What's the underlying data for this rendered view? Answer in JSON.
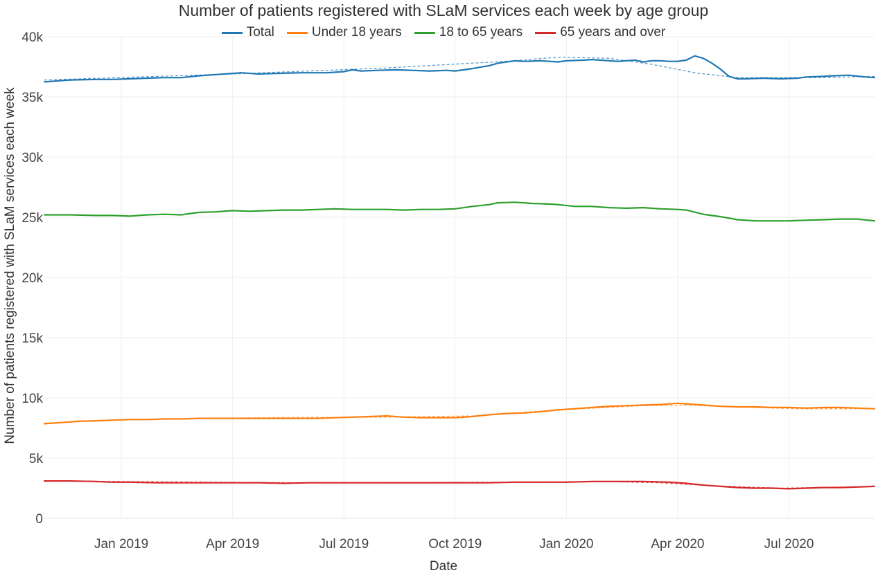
{
  "chart_data": {
    "type": "line",
    "title": "Number of patients registered with SLaM services each week by age group",
    "xlabel": "Date",
    "ylabel": "Number of patients registered with SLaM services each week",
    "x_tick_labels": [
      "Jan 2019",
      "Apr 2019",
      "Jul 2019",
      "Oct 2019",
      "Jan 2020",
      "Apr 2020",
      "Jul 2020"
    ],
    "y_tick_labels": [
      "0",
      "5k",
      "10k",
      "15k",
      "20k",
      "25k",
      "30k",
      "35k",
      "40k"
    ],
    "x_ticks": [
      9,
      22,
      35,
      48,
      61,
      74,
      87
    ],
    "y_ticks": [
      0,
      5000,
      10000,
      15000,
      20000,
      25000,
      30000,
      35000,
      40000
    ],
    "xlim": [
      0,
      97
    ],
    "ylim": [
      0,
      40000
    ],
    "grid": true,
    "legend_position": "top",
    "series": [
      {
        "name": "Total",
        "color": "#1f77b4",
        "trend": [
          [
            0,
            36400
          ],
          [
            22,
            36900
          ],
          [
            40,
            37400
          ],
          [
            55,
            38000
          ],
          [
            60,
            38300
          ],
          [
            66,
            38200
          ],
          [
            71,
            37700
          ],
          [
            76,
            37000
          ],
          [
            81,
            36600
          ],
          [
            90,
            36600
          ],
          [
            97,
            36700
          ]
        ],
        "values": [
          [
            0,
            36250
          ],
          [
            3,
            36400
          ],
          [
            6,
            36450
          ],
          [
            8,
            36450
          ],
          [
            10,
            36500
          ],
          [
            12,
            36550
          ],
          [
            14,
            36600
          ],
          [
            16,
            36600
          ],
          [
            18,
            36750
          ],
          [
            20,
            36850
          ],
          [
            22,
            36950
          ],
          [
            23,
            37000
          ],
          [
            25,
            36900
          ],
          [
            27,
            36950
          ],
          [
            30,
            37000
          ],
          [
            33,
            37000
          ],
          [
            35,
            37100
          ],
          [
            36,
            37250
          ],
          [
            37,
            37150
          ],
          [
            39,
            37200
          ],
          [
            41,
            37250
          ],
          [
            43,
            37200
          ],
          [
            45,
            37150
          ],
          [
            47,
            37200
          ],
          [
            48,
            37150
          ],
          [
            50,
            37350
          ],
          [
            52,
            37600
          ],
          [
            53,
            37800
          ],
          [
            55,
            38000
          ],
          [
            56,
            37950
          ],
          [
            58,
            38000
          ],
          [
            60,
            37900
          ],
          [
            61,
            38000
          ],
          [
            63,
            38050
          ],
          [
            64,
            38100
          ],
          [
            66,
            38000
          ],
          [
            67,
            37950
          ],
          [
            69,
            38050
          ],
          [
            70,
            37900
          ],
          [
            71,
            38000
          ],
          [
            72,
            38000
          ],
          [
            73,
            37950
          ],
          [
            74,
            37950
          ],
          [
            75,
            38050
          ],
          [
            76,
            38400
          ],
          [
            77,
            38200
          ],
          [
            78,
            37800
          ],
          [
            79,
            37300
          ],
          [
            80,
            36700
          ],
          [
            81,
            36500
          ],
          [
            82,
            36500
          ],
          [
            84,
            36550
          ],
          [
            86,
            36500
          ],
          [
            88,
            36550
          ],
          [
            89,
            36650
          ],
          [
            91,
            36700
          ],
          [
            92,
            36750
          ],
          [
            94,
            36800
          ],
          [
            96,
            36650
          ],
          [
            97,
            36600
          ]
        ]
      },
      {
        "name": "Under 18 years",
        "color": "#ff7f0e",
        "trend": [
          [
            0,
            7900
          ],
          [
            10,
            8200
          ],
          [
            25,
            8350
          ],
          [
            40,
            8400
          ],
          [
            50,
            8500
          ],
          [
            60,
            9000
          ],
          [
            70,
            9350
          ],
          [
            75,
            9400
          ],
          [
            80,
            9250
          ],
          [
            88,
            9100
          ],
          [
            97,
            9100
          ]
        ],
        "values": [
          [
            0,
            7850
          ],
          [
            2,
            7950
          ],
          [
            4,
            8050
          ],
          [
            6,
            8100
          ],
          [
            8,
            8150
          ],
          [
            10,
            8200
          ],
          [
            12,
            8200
          ],
          [
            14,
            8250
          ],
          [
            16,
            8250
          ],
          [
            18,
            8300
          ],
          [
            20,
            8300
          ],
          [
            22,
            8300
          ],
          [
            24,
            8300
          ],
          [
            26,
            8300
          ],
          [
            28,
            8300
          ],
          [
            30,
            8300
          ],
          [
            32,
            8300
          ],
          [
            34,
            8350
          ],
          [
            36,
            8400
          ],
          [
            38,
            8450
          ],
          [
            40,
            8500
          ],
          [
            42,
            8400
          ],
          [
            44,
            8350
          ],
          [
            46,
            8350
          ],
          [
            48,
            8350
          ],
          [
            50,
            8450
          ],
          [
            52,
            8600
          ],
          [
            54,
            8700
          ],
          [
            56,
            8750
          ],
          [
            58,
            8850
          ],
          [
            60,
            9000
          ],
          [
            62,
            9100
          ],
          [
            64,
            9200
          ],
          [
            66,
            9300
          ],
          [
            68,
            9350
          ],
          [
            70,
            9400
          ],
          [
            72,
            9450
          ],
          [
            74,
            9550
          ],
          [
            75,
            9500
          ],
          [
            77,
            9400
          ],
          [
            79,
            9300
          ],
          [
            81,
            9250
          ],
          [
            83,
            9250
          ],
          [
            85,
            9200
          ],
          [
            87,
            9200
          ],
          [
            89,
            9150
          ],
          [
            91,
            9200
          ],
          [
            93,
            9200
          ],
          [
            95,
            9150
          ],
          [
            97,
            9100
          ]
        ]
      },
      {
        "name": "18 to 65 years",
        "color": "#2ca02c",
        "values": [
          [
            0,
            25200
          ],
          [
            3,
            25200
          ],
          [
            6,
            25150
          ],
          [
            8,
            25150
          ],
          [
            10,
            25100
          ],
          [
            12,
            25200
          ],
          [
            14,
            25250
          ],
          [
            16,
            25200
          ],
          [
            18,
            25400
          ],
          [
            20,
            25450
          ],
          [
            22,
            25550
          ],
          [
            24,
            25500
          ],
          [
            26,
            25550
          ],
          [
            28,
            25600
          ],
          [
            30,
            25600
          ],
          [
            32,
            25650
          ],
          [
            34,
            25700
          ],
          [
            36,
            25650
          ],
          [
            38,
            25650
          ],
          [
            40,
            25650
          ],
          [
            42,
            25600
          ],
          [
            44,
            25650
          ],
          [
            46,
            25650
          ],
          [
            48,
            25700
          ],
          [
            50,
            25900
          ],
          [
            52,
            26050
          ],
          [
            53,
            26200
          ],
          [
            55,
            26250
          ],
          [
            57,
            26150
          ],
          [
            59,
            26100
          ],
          [
            60,
            26050
          ],
          [
            62,
            25900
          ],
          [
            64,
            25900
          ],
          [
            66,
            25800
          ],
          [
            68,
            25750
          ],
          [
            70,
            25800
          ],
          [
            72,
            25700
          ],
          [
            74,
            25650
          ],
          [
            75,
            25600
          ],
          [
            77,
            25250
          ],
          [
            79,
            25050
          ],
          [
            81,
            24800
          ],
          [
            83,
            24700
          ],
          [
            85,
            24700
          ],
          [
            87,
            24700
          ],
          [
            89,
            24750
          ],
          [
            91,
            24800
          ],
          [
            93,
            24850
          ],
          [
            95,
            24850
          ],
          [
            97,
            24700
          ]
        ]
      },
      {
        "name": "65 years and over",
        "color": "#d62728",
        "trend": [
          [
            0,
            3100
          ],
          [
            30,
            2950
          ],
          [
            55,
            3000
          ],
          [
            65,
            3050
          ],
          [
            72,
            2950
          ],
          [
            78,
            2700
          ],
          [
            86,
            2500
          ],
          [
            97,
            2650
          ]
        ],
        "values": [
          [
            0,
            3100
          ],
          [
            3,
            3100
          ],
          [
            6,
            3050
          ],
          [
            8,
            3000
          ],
          [
            10,
            3000
          ],
          [
            13,
            2950
          ],
          [
            16,
            2950
          ],
          [
            19,
            2950
          ],
          [
            22,
            2950
          ],
          [
            25,
            2950
          ],
          [
            28,
            2900
          ],
          [
            31,
            2950
          ],
          [
            34,
            2950
          ],
          [
            37,
            2950
          ],
          [
            40,
            2950
          ],
          [
            43,
            2950
          ],
          [
            46,
            2950
          ],
          [
            49,
            2950
          ],
          [
            52,
            2950
          ],
          [
            55,
            3000
          ],
          [
            58,
            3000
          ],
          [
            61,
            3000
          ],
          [
            64,
            3050
          ],
          [
            67,
            3050
          ],
          [
            70,
            3050
          ],
          [
            73,
            3000
          ],
          [
            75,
            2900
          ],
          [
            77,
            2750
          ],
          [
            79,
            2650
          ],
          [
            81,
            2550
          ],
          [
            83,
            2500
          ],
          [
            85,
            2500
          ],
          [
            87,
            2450
          ],
          [
            89,
            2500
          ],
          [
            91,
            2550
          ],
          [
            93,
            2550
          ],
          [
            95,
            2600
          ],
          [
            97,
            2650
          ]
        ]
      }
    ]
  }
}
